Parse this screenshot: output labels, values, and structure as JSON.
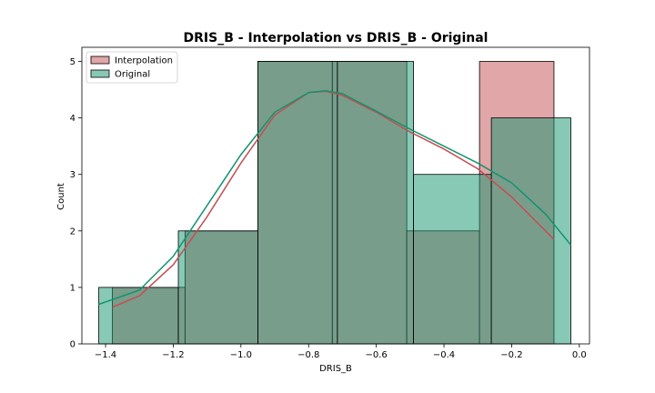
{
  "chart_data": {
    "type": "histogram",
    "title": "DRIS_B - Interpolation vs DRIS_B - Original",
    "xlabel": "DRIS_B",
    "ylabel": "Count",
    "xlim": [
      -1.47,
      0.03
    ],
    "ylim": [
      0,
      5.25
    ],
    "xticks": [
      -1.4,
      -1.2,
      -1.0,
      -0.8,
      -0.6,
      -0.4,
      -0.2,
      0.0
    ],
    "xtick_labels": [
      "−1.4",
      "−1.2",
      "−1.0",
      "−0.8",
      "−0.6",
      "−0.4",
      "−0.2",
      "0.0"
    ],
    "yticks": [
      0,
      1,
      2,
      3,
      4,
      5
    ],
    "ytick_labels": [
      "0",
      "1",
      "2",
      "3",
      "4",
      "5"
    ],
    "grid": false,
    "legend_position": "top-left",
    "series": [
      {
        "name": "Interpolation",
        "color": "#c44e52",
        "fill": "#d9a3a3",
        "bin_edges": [
          -1.38,
          -1.165,
          -0.95,
          -0.73,
          -0.51,
          -0.295,
          -0.075
        ],
        "counts": [
          1,
          2,
          5,
          5,
          2,
          5
        ],
        "kde": [
          [
            -1.38,
            0.65
          ],
          [
            -1.3,
            0.85
          ],
          [
            -1.2,
            1.4
          ],
          [
            -1.1,
            2.25
          ],
          [
            -1.0,
            3.2
          ],
          [
            -0.9,
            4.05
          ],
          [
            -0.8,
            4.45
          ],
          [
            -0.75,
            4.47
          ],
          [
            -0.7,
            4.4
          ],
          [
            -0.6,
            4.1
          ],
          [
            -0.5,
            3.75
          ],
          [
            -0.4,
            3.45
          ],
          [
            -0.3,
            3.1
          ],
          [
            -0.2,
            2.6
          ],
          [
            -0.075,
            1.85
          ]
        ]
      },
      {
        "name": "Original",
        "color": "#12936e",
        "fill": "#7ecbb1",
        "bin_edges": [
          -1.42,
          -1.185,
          -0.95,
          -0.715,
          -0.49,
          -0.26,
          -0.025
        ],
        "counts": [
          1,
          2,
          5,
          5,
          3,
          4
        ],
        "kde": [
          [
            -1.42,
            0.7
          ],
          [
            -1.3,
            0.95
          ],
          [
            -1.2,
            1.55
          ],
          [
            -1.1,
            2.45
          ],
          [
            -1.0,
            3.35
          ],
          [
            -0.9,
            4.1
          ],
          [
            -0.8,
            4.45
          ],
          [
            -0.75,
            4.48
          ],
          [
            -0.7,
            4.43
          ],
          [
            -0.6,
            4.12
          ],
          [
            -0.5,
            3.8
          ],
          [
            -0.4,
            3.5
          ],
          [
            -0.3,
            3.2
          ],
          [
            -0.2,
            2.85
          ],
          [
            -0.1,
            2.3
          ],
          [
            -0.025,
            1.75
          ]
        ]
      }
    ]
  }
}
